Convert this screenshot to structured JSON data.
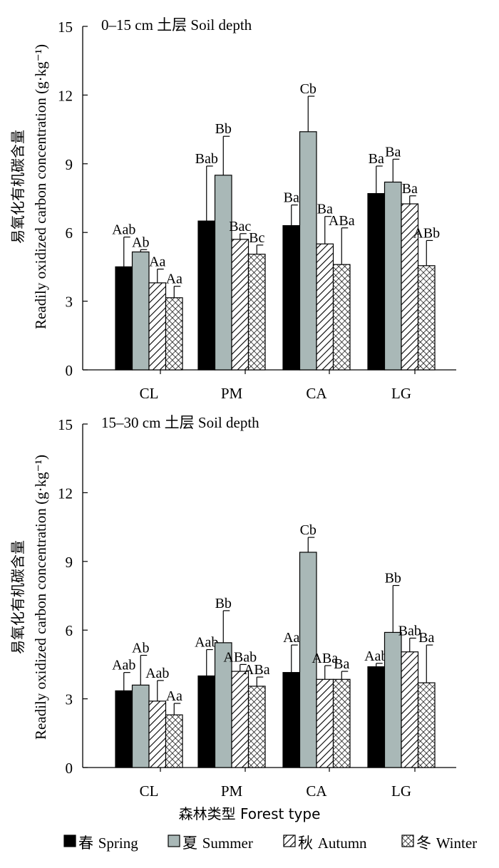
{
  "chart_data": [
    {
      "type": "bar",
      "title": "0–15 cm 土层 Soil depth",
      "ylabel_zh": "易氧化有机碳含量",
      "ylabel": "Readily oxidized carbon concentration",
      "ylabel_unit": "(g·kg⁻¹)",
      "ylim": [
        0,
        15
      ],
      "yticks": [
        0,
        3,
        6,
        9,
        12,
        15
      ],
      "categories": [
        "CL",
        "PM",
        "CA",
        "LG"
      ],
      "series": [
        {
          "name": "春 Spring",
          "values": [
            4.5,
            6.5,
            6.3,
            7.7
          ],
          "errors": [
            1.3,
            2.4,
            0.9,
            1.2
          ],
          "labels": [
            "Aab",
            "Bab",
            "Ba",
            "Ba"
          ]
        },
        {
          "name": "夏 Summer",
          "values": [
            5.15,
            8.5,
            10.4,
            8.2
          ],
          "errors": [
            0.1,
            1.7,
            1.55,
            1.0
          ],
          "labels": [
            "Ab",
            "Bb",
            "Cb",
            "Ba"
          ]
        },
        {
          "name": "秋 Autumn",
          "values": [
            3.8,
            5.7,
            5.5,
            7.25
          ],
          "errors": [
            0.6,
            0.25,
            1.2,
            0.35
          ],
          "labels": [
            "Aa",
            "Bac",
            "Ba",
            "Ba"
          ]
        },
        {
          "name": "冬 Winter",
          "values": [
            3.15,
            5.05,
            4.6,
            4.55
          ],
          "errors": [
            0.5,
            0.4,
            1.6,
            1.1
          ],
          "labels": [
            "Aa",
            "Bc",
            "ABa",
            "ABb"
          ]
        }
      ]
    },
    {
      "type": "bar",
      "title": "15–30 cm 土层 Soil depth",
      "ylabel_zh": "易氧化有机碳含量",
      "ylabel": "Readily oxidized carbon concentration",
      "ylabel_unit": "(g·kg⁻¹)",
      "ylim": [
        0,
        15
      ],
      "yticks": [
        0,
        3,
        6,
        9,
        12,
        15
      ],
      "categories": [
        "CL",
        "PM",
        "CA",
        "LG"
      ],
      "xlabel": "森林类型 Forest type",
      "series": [
        {
          "name": "春 Spring",
          "values": [
            3.35,
            4.0,
            4.15,
            4.4
          ],
          "errors": [
            0.8,
            1.15,
            1.2,
            0.15
          ],
          "labels": [
            "Aab",
            "Aab",
            "Aa",
            "Aab"
          ]
        },
        {
          "name": "夏 Summer",
          "values": [
            3.6,
            5.45,
            9.4,
            5.9
          ],
          "errors": [
            1.3,
            1.4,
            0.65,
            2.05
          ],
          "labels": [
            "Ab",
            "Bb",
            "Cb",
            "Bb"
          ]
        },
        {
          "name": "秋 Autumn",
          "values": [
            2.9,
            4.2,
            3.85,
            5.05
          ],
          "errors": [
            0.9,
            0.3,
            0.6,
            0.6
          ],
          "labels": [
            "Aab",
            "ABab",
            "ABa",
            "Bab"
          ]
        },
        {
          "name": "冬 Winter",
          "values": [
            2.3,
            3.55,
            3.85,
            3.7
          ],
          "errors": [
            0.5,
            0.4,
            0.35,
            1.65
          ],
          "labels": [
            "Aa",
            "ABa",
            "Ba",
            "Ba"
          ]
        }
      ]
    }
  ],
  "legend": [
    {
      "label": "春 Spring",
      "fill": "black"
    },
    {
      "label": "夏 Summer",
      "fill": "gray"
    },
    {
      "label": "秋 Autumn",
      "fill": "hatch"
    },
    {
      "label": "冬 Winter",
      "fill": "cross"
    }
  ],
  "colors": {
    "spring": "#000000",
    "summer": "#a9b8b7",
    "background": "#ffffff"
  }
}
